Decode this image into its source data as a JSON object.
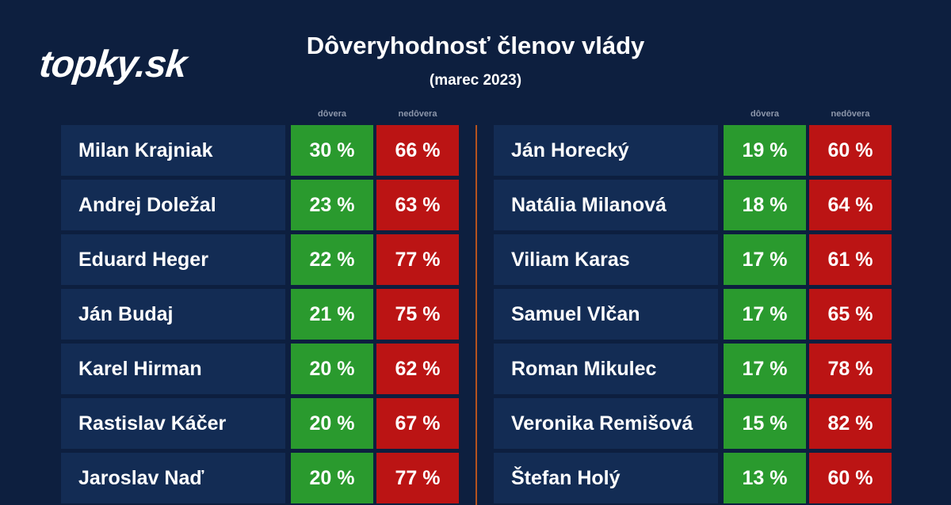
{
  "brand": {
    "logo_text": "topky.sk"
  },
  "header": {
    "title": "Dôveryhodnosť členov vlády",
    "subtitle": "(marec 2023)"
  },
  "columns": {
    "trust": "dôvera",
    "distrust": "nedôvera"
  },
  "colors": {
    "background": "#0d1f3f",
    "name_cell": "#132c54",
    "trust": "#2a9a2e",
    "distrust": "#bb1414",
    "divider": "#b4531f"
  },
  "chart_data": {
    "type": "table",
    "title": "Dôveryhodnosť členov vlády",
    "subtitle": "(marec 2023)",
    "columns": [
      "dôvera",
      "nedôvera"
    ],
    "left": [
      {
        "name": "Milan Krajniak",
        "trust": "30 %",
        "distrust": "66 %"
      },
      {
        "name": "Andrej Doležal",
        "trust": "23 %",
        "distrust": "63 %"
      },
      {
        "name": "Eduard Heger",
        "trust": "22 %",
        "distrust": "77 %"
      },
      {
        "name": "Ján Budaj",
        "trust": "21 %",
        "distrust": "75 %"
      },
      {
        "name": "Karel Hirman",
        "trust": "20 %",
        "distrust": "62 %"
      },
      {
        "name": "Rastislav Káčer",
        "trust": "20 %",
        "distrust": "67 %"
      },
      {
        "name": "Jaroslav Naď",
        "trust": "20 %",
        "distrust": "77 %"
      }
    ],
    "right": [
      {
        "name": "Ján Horecký",
        "trust": "19 %",
        "distrust": "60 %"
      },
      {
        "name": "Natália Milanová",
        "trust": "18 %",
        "distrust": "64 %"
      },
      {
        "name": "Viliam Karas",
        "trust": "17 %",
        "distrust": "61 %"
      },
      {
        "name": "Samuel Vlčan",
        "trust": "17 %",
        "distrust": "65 %"
      },
      {
        "name": "Roman Mikulec",
        "trust": "17 %",
        "distrust": "78 %"
      },
      {
        "name": "Veronika Remišová",
        "trust": "15 %",
        "distrust": "82 %"
      },
      {
        "name": "Štefan Holý",
        "trust": "13 %",
        "distrust": "60 %"
      }
    ]
  }
}
